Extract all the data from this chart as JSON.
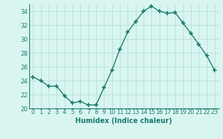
{
  "x": [
    0,
    1,
    2,
    3,
    4,
    5,
    6,
    7,
    8,
    9,
    10,
    11,
    12,
    13,
    14,
    15,
    16,
    17,
    18,
    19,
    20,
    21,
    22,
    23
  ],
  "y": [
    24.5,
    24.0,
    23.2,
    23.2,
    21.8,
    20.8,
    21.0,
    20.5,
    20.5,
    23.0,
    25.5,
    28.5,
    31.0,
    32.5,
    34.0,
    34.7,
    34.0,
    33.7,
    33.8,
    32.3,
    30.8,
    29.2,
    27.6,
    25.5
  ],
  "line_color": "#1a7a6e",
  "marker": "+",
  "markersize": 4,
  "markeredgewidth": 1.2,
  "linewidth": 1.0,
  "bg_color": "#d8f5f0",
  "grid_color": "#b0d8d4",
  "xlabel": "Humidex (Indice chaleur)",
  "xlabel_fontsize": 7,
  "tick_fontsize": 6,
  "ylim": [
    20,
    35
  ],
  "yticks": [
    20,
    22,
    24,
    26,
    28,
    30,
    32,
    34
  ],
  "xticks": [
    0,
    1,
    2,
    3,
    4,
    5,
    6,
    7,
    8,
    9,
    10,
    11,
    12,
    13,
    14,
    15,
    16,
    17,
    18,
    19,
    20,
    21,
    22,
    23
  ],
  "tick_color": "#1a7a6e",
  "label_color": "#1a7a6e",
  "spine_color": "#1a7a6e"
}
